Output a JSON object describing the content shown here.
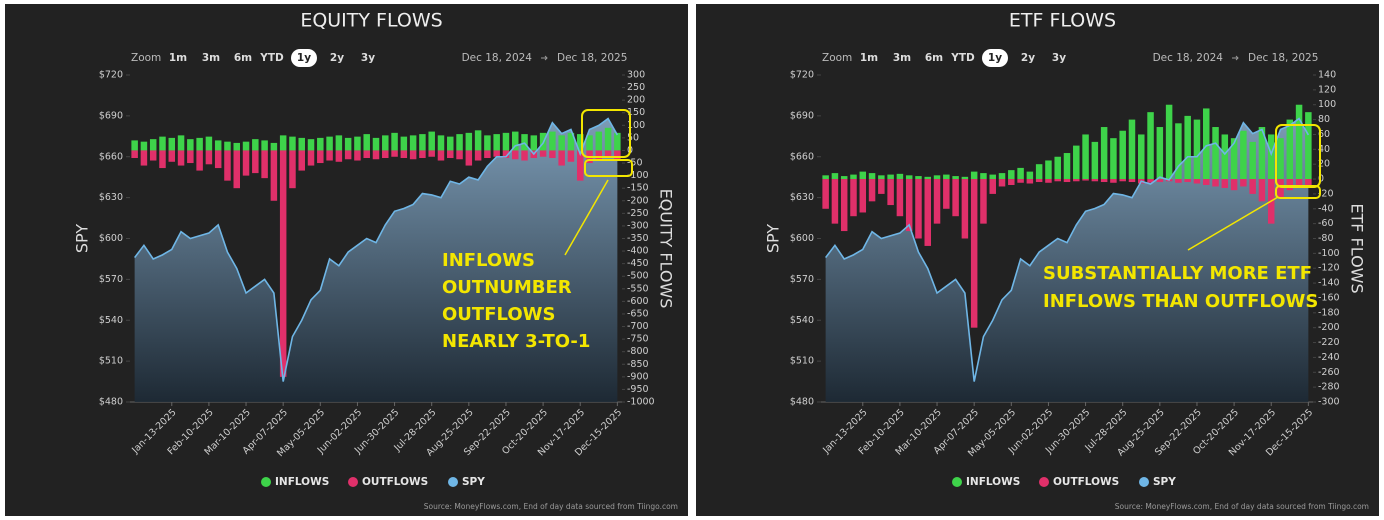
{
  "chart_data": [
    {
      "type": "bar-line",
      "title": "EQUITY FLOWS",
      "ylabel": "SPY",
      "y2label": "EQUITY FLOWS",
      "zoom": {
        "label": "Zoom",
        "options": [
          "1m",
          "3m",
          "6m",
          "YTD",
          "1y",
          "2y",
          "3y"
        ],
        "selected": "1y"
      },
      "date_range": [
        "Dec 18, 2024",
        "Dec 18, 2025"
      ],
      "annotation": [
        "INFLOWS",
        "OUTNUMBER",
        "OUTFLOWS",
        "NEARLY 3-TO-1"
      ],
      "source": "Source: MoneyFlows.com, End of day data sourced from Tiingo.com",
      "categories": [
        null,
        null,
        null,
        null,
        "Jan-13-2025",
        null,
        null,
        null,
        "Feb-10-2025",
        null,
        null,
        null,
        "Mar-10-2025",
        null,
        null,
        null,
        "Apr-07-2025",
        null,
        null,
        null,
        "May-05-2025",
        null,
        null,
        null,
        "Jun-02-2025",
        null,
        null,
        null,
        "Jun-30-2025",
        null,
        null,
        null,
        "Jul-28-2025",
        null,
        null,
        null,
        "Aug-25-2025",
        null,
        null,
        null,
        "Sep-22-2025",
        null,
        null,
        null,
        "Oct-20-2025",
        null,
        null,
        null,
        "Nov-17-2025",
        null,
        null,
        null,
        "Dec-15-2025"
      ],
      "series": [
        {
          "name": "INFLOWS",
          "color": "#3ed34a",
          "axis": "y2",
          "values": [
            40,
            35,
            45,
            55,
            50,
            60,
            45,
            50,
            55,
            40,
            35,
            30,
            35,
            45,
            40,
            30,
            60,
            55,
            50,
            45,
            50,
            55,
            60,
            50,
            55,
            65,
            50,
            60,
            70,
            55,
            60,
            65,
            75,
            60,
            55,
            65,
            70,
            80,
            60,
            65,
            70,
            75,
            65,
            60,
            70,
            75,
            60,
            70,
            65,
            60,
            75,
            90,
            70
          ]
        },
        {
          "name": "OUTFLOWS",
          "color": "#e0306a",
          "axis": "y2",
          "values": [
            -30,
            -60,
            -40,
            -70,
            -45,
            -60,
            -50,
            -80,
            -55,
            -70,
            -120,
            -150,
            -100,
            -90,
            -110,
            -200,
            -900,
            -150,
            -80,
            -60,
            -50,
            -40,
            -45,
            -35,
            -40,
            -30,
            -35,
            -30,
            -25,
            -30,
            -35,
            -30,
            -25,
            -40,
            -30,
            -35,
            -60,
            -40,
            -30,
            -25,
            -30,
            -35,
            -40,
            -30,
            -25,
            -30,
            -60,
            -45,
            -120,
            -50,
            -40,
            -30,
            -35
          ]
        },
        {
          "name": "SPY",
          "color": "#6fb6e6",
          "values": [
            586,
            595,
            585,
            588,
            592,
            605,
            600,
            602,
            604,
            610,
            590,
            578,
            560,
            565,
            570,
            560,
            495,
            528,
            540,
            555,
            562,
            585,
            580,
            590,
            595,
            600,
            597,
            610,
            620,
            622,
            625,
            633,
            632,
            630,
            642,
            640,
            645,
            643,
            653,
            660,
            660,
            668,
            670,
            662,
            670,
            685,
            677,
            680,
            662,
            680,
            683,
            688,
            676
          ]
        }
      ],
      "ylim": [
        480,
        720
      ],
      "yticks": [
        {
          "value": 480,
          "label": "$480"
        },
        {
          "value": 510,
          "label": "$510"
        },
        {
          "value": 540,
          "label": "$540"
        },
        {
          "value": 570,
          "label": "$570"
        },
        {
          "value": 600,
          "label": "$600"
        },
        {
          "value": 630,
          "label": "$630"
        },
        {
          "value": 660,
          "label": "$660"
        },
        {
          "value": 690,
          "label": "$690"
        },
        {
          "value": 720,
          "label": "$720"
        }
      ],
      "y2lim": [
        -1000,
        300
      ],
      "y2ticks": [
        300,
        250,
        200,
        150,
        100,
        50,
        0,
        -50,
        -100,
        -150,
        -200,
        -250,
        -300,
        -350,
        -400,
        -450,
        -500,
        -550,
        -600,
        -650,
        -700,
        -750,
        -800,
        -850,
        -900,
        -950,
        -1000
      ]
    },
    {
      "type": "bar-line",
      "title": "ETF FLOWS",
      "ylabel": "SPY",
      "y2label": "ETF FLOWS",
      "zoom": {
        "label": "Zoom",
        "options": [
          "1m",
          "3m",
          "6m",
          "YTD",
          "1y",
          "2y",
          "3y"
        ],
        "selected": "1y"
      },
      "date_range": [
        "Dec 18, 2024",
        "Dec 18, 2025"
      ],
      "annotation": [
        "SUBSTANTIALLY MORE ETF",
        "INFLOWS THAN OUTFLOWS"
      ],
      "source": "Source: MoneyFlows.com, End of day data sourced from Tiingo.com",
      "categories": [
        null,
        null,
        null,
        null,
        "Jan-13-2025",
        null,
        null,
        null,
        "Feb-10-2025",
        null,
        null,
        null,
        "Mar-10-2025",
        null,
        null,
        null,
        "Apr-07-2025",
        null,
        null,
        null,
        "May-05-2025",
        null,
        null,
        null,
        "Jun-02-2025",
        null,
        null,
        null,
        "Jun-30-2025",
        null,
        null,
        null,
        "Jul-28-2025",
        null,
        null,
        null,
        "Aug-25-2025",
        null,
        null,
        null,
        "Sep-22-2025",
        null,
        null,
        null,
        "Oct-20-2025",
        null,
        null,
        null,
        "Nov-17-2025",
        null,
        null,
        null,
        "Dec-15-2025"
      ],
      "series": [
        {
          "name": "INFLOWS",
          "color": "#3ed34a",
          "axis": "y2",
          "values": [
            5,
            8,
            4,
            6,
            10,
            8,
            5,
            6,
            7,
            5,
            4,
            3,
            5,
            6,
            4,
            3,
            10,
            8,
            6,
            8,
            12,
            15,
            10,
            20,
            25,
            30,
            35,
            45,
            60,
            50,
            70,
            55,
            65,
            80,
            60,
            90,
            70,
            100,
            75,
            85,
            80,
            95,
            70,
            60,
            55,
            65,
            50,
            70,
            60,
            55,
            80,
            100,
            90
          ]
        },
        {
          "name": "OUTFLOWS",
          "color": "#e0306a",
          "axis": "y2",
          "values": [
            -40,
            -60,
            -70,
            -50,
            -45,
            -30,
            -20,
            -35,
            -50,
            -70,
            -80,
            -90,
            -60,
            -40,
            -50,
            -80,
            -200,
            -60,
            -20,
            -10,
            -8,
            -5,
            -6,
            -4,
            -5,
            -3,
            -4,
            -3,
            -2,
            -3,
            -4,
            -5,
            -3,
            -4,
            -6,
            -5,
            -4,
            -3,
            -5,
            -4,
            -6,
            -8,
            -10,
            -12,
            -15,
            -10,
            -20,
            -30,
            -60,
            -25,
            -15,
            -10,
            -12
          ]
        },
        {
          "name": "SPY",
          "color": "#6fb6e6",
          "values": [
            586,
            595,
            585,
            588,
            592,
            605,
            600,
            602,
            604,
            610,
            590,
            578,
            560,
            565,
            570,
            560,
            495,
            528,
            540,
            555,
            562,
            585,
            580,
            590,
            595,
            600,
            597,
            610,
            620,
            622,
            625,
            633,
            632,
            630,
            642,
            640,
            645,
            643,
            653,
            660,
            660,
            668,
            670,
            662,
            670,
            685,
            677,
            680,
            662,
            680,
            683,
            688,
            676
          ]
        }
      ],
      "ylim": [
        480,
        720
      ],
      "yticks": [
        {
          "value": 480,
          "label": "$480"
        },
        {
          "value": 510,
          "label": "$510"
        },
        {
          "value": 540,
          "label": "$540"
        },
        {
          "value": 570,
          "label": "$570"
        },
        {
          "value": 600,
          "label": "$600"
        },
        {
          "value": 630,
          "label": "$630"
        },
        {
          "value": 660,
          "label": "$660"
        },
        {
          "value": 690,
          "label": "$690"
        },
        {
          "value": 720,
          "label": "$720"
        }
      ],
      "y2lim": [
        -300,
        140
      ],
      "y2ticks": [
        140,
        120,
        100,
        80,
        60,
        40,
        20,
        0,
        -20,
        -40,
        -60,
        -80,
        -100,
        -120,
        -140,
        -160,
        -180,
        -200,
        -220,
        -240,
        -260,
        -280,
        -300
      ]
    }
  ]
}
